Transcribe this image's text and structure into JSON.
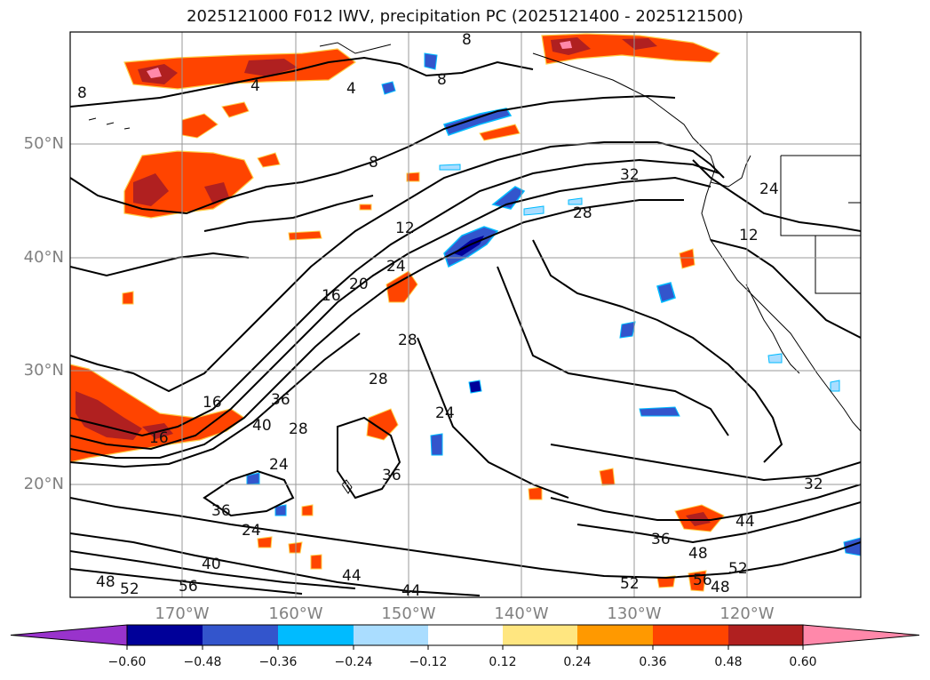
{
  "title": "2025121000 F012 IWV, precipitation PC (2025121400 - 2025121500)",
  "lat_labels": [
    "50°N",
    "40°N",
    "30°N",
    "20°N"
  ],
  "lon_labels": [
    "170°W",
    "160°W",
    "150°W",
    "140°W",
    "130°W",
    "120°W"
  ],
  "contour_labels": [
    "8",
    "4",
    "4",
    "8",
    "8",
    "12",
    "16",
    "20",
    "24",
    "28",
    "28",
    "32",
    "24",
    "12",
    "16",
    "16",
    "36",
    "40",
    "28",
    "24",
    "28",
    "24",
    "36",
    "36",
    "24",
    "40",
    "48",
    "52",
    "56",
    "44",
    "44",
    "36",
    "48",
    "56",
    "48",
    "52",
    "32",
    "44",
    "52",
    "8"
  ],
  "colorbar": {
    "ticks": [
      "−0.60",
      "−0.48",
      "−0.36",
      "−0.24",
      "−0.12",
      "0.12",
      "0.24",
      "0.36",
      "0.48",
      "0.60"
    ],
    "colors": {
      "under": "#9933cc",
      "bins": [
        "#000099",
        "#3355cc",
        "#00bbff",
        "#aaddff",
        "#ffffff",
        "#ffe680",
        "#ff9900",
        "#ff4400",
        "#b02020"
      ],
      "over": "#ff88aa"
    }
  }
}
